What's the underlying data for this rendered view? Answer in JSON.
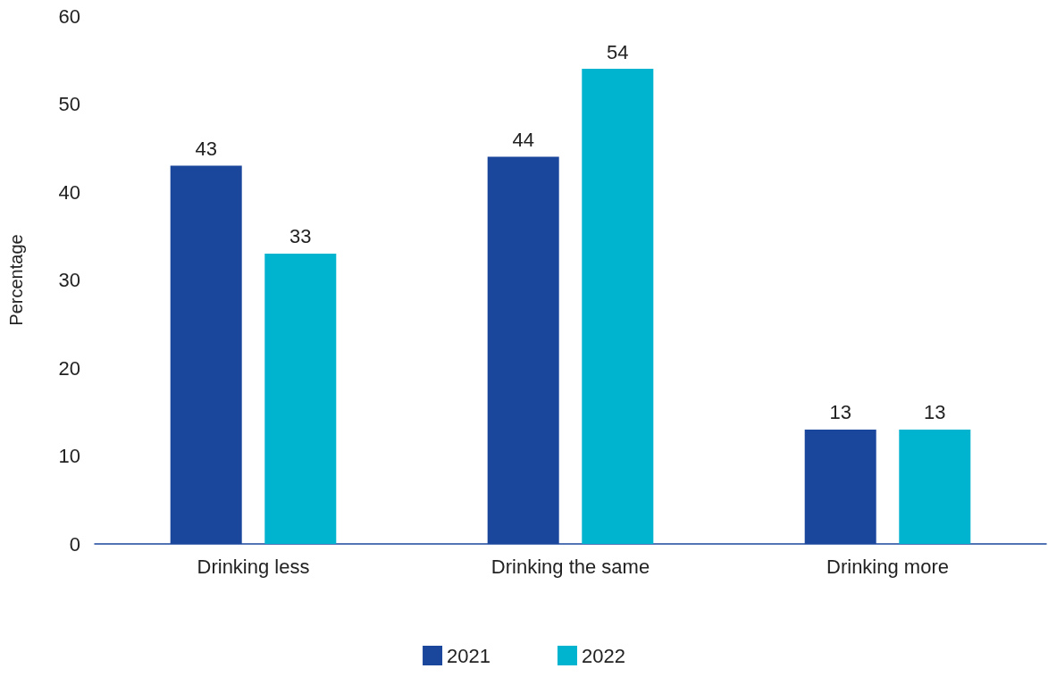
{
  "chart_data": {
    "type": "bar",
    "ylabel": "Percentage",
    "categories": [
      "Drinking less",
      "Drinking the same",
      "Drinking more"
    ],
    "series": [
      {
        "name": "2021",
        "color": "#1a469c",
        "values": [
          43,
          44,
          13
        ]
      },
      {
        "name": "2022",
        "color": "#00b3cf",
        "values": [
          33,
          54,
          13
        ]
      }
    ],
    "ylim": [
      0,
      60
    ],
    "yticks": [
      0,
      10,
      20,
      30,
      40,
      50,
      60
    ],
    "grid": false,
    "legend": "bottom",
    "data_labels": true
  }
}
